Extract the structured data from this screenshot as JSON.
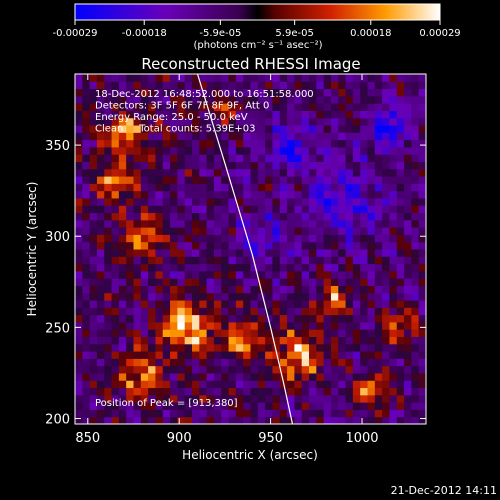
{
  "chart_data": {
    "type": "heatmap",
    "title": "Reconstructed RHESSI Image",
    "xlabel": "Heliocentric X (arcsec)",
    "ylabel": "Heliocentric Y (arcsec)",
    "xlim": [
      843,
      1035
    ],
    "ylim": [
      197,
      389
    ],
    "x_ticks": [
      850,
      900,
      950,
      1000
    ],
    "y_ticks": [
      200,
      250,
      300,
      350
    ],
    "colorbar": {
      "range": [
        -0.00029,
        0.00029
      ],
      "ticks": [
        "-0.00029",
        "-0.00018",
        "-5.9e-05",
        "5.9e-05",
        "0.00018",
        "0.00029"
      ],
      "tick_values": [
        -0.00029,
        -0.00018,
        -5.9e-05,
        5.9e-05,
        0.00018,
        0.00029
      ],
      "unit_label": "(photons cm⁻² s⁻¹ asec⁻²)"
    },
    "annotations": [
      "18-Dec-2012 16:48:52.000 to 16:51:58.000",
      "Detectors: 3F 5F 6F 7F 8F 9F, Att 0",
      "Energy Range: 25.0 - 50.0 keV",
      "Clean     Total counts: 5.39E+03"
    ],
    "peak_label": "Position of Peak = [913,380]",
    "limb_curve": [
      [
        910,
        389
      ],
      [
        925,
        340
      ],
      [
        940,
        290
      ],
      [
        950,
        250
      ],
      [
        957,
        220
      ],
      [
        962,
        197
      ]
    ],
    "bright_regions": [
      {
        "x": 870,
        "y": 355,
        "r": 12,
        "v": 0.00026
      },
      {
        "x": 865,
        "y": 330,
        "r": 10,
        "v": 0.00024
      },
      {
        "x": 880,
        "y": 300,
        "r": 12,
        "v": 0.00022
      },
      {
        "x": 905,
        "y": 250,
        "r": 14,
        "v": 0.00028
      },
      {
        "x": 935,
        "y": 245,
        "r": 10,
        "v": 0.00025
      },
      {
        "x": 965,
        "y": 235,
        "r": 14,
        "v": 0.00029
      },
      {
        "x": 985,
        "y": 265,
        "r": 10,
        "v": 0.00022
      },
      {
        "x": 1020,
        "y": 250,
        "r": 10,
        "v": 0.0002
      },
      {
        "x": 880,
        "y": 225,
        "r": 12,
        "v": 0.00024
      },
      {
        "x": 1005,
        "y": 215,
        "r": 10,
        "v": 0.00022
      },
      {
        "x": 925,
        "y": 370,
        "r": 8,
        "v": 0.00016
      }
    ],
    "dark_regions": [
      {
        "x": 990,
        "y": 320,
        "r": 20,
        "v": -0.00014
      },
      {
        "x": 960,
        "y": 350,
        "r": 12,
        "v": -0.00018
      },
      {
        "x": 1015,
        "y": 360,
        "r": 10,
        "v": -0.0002
      },
      {
        "x": 945,
        "y": 300,
        "r": 14,
        "v": -0.00012
      }
    ]
  },
  "footer": {
    "timestamp": "21-Dec-2012 14:11"
  },
  "colors": {
    "background": "#000000",
    "limb": "#ffffff"
  }
}
